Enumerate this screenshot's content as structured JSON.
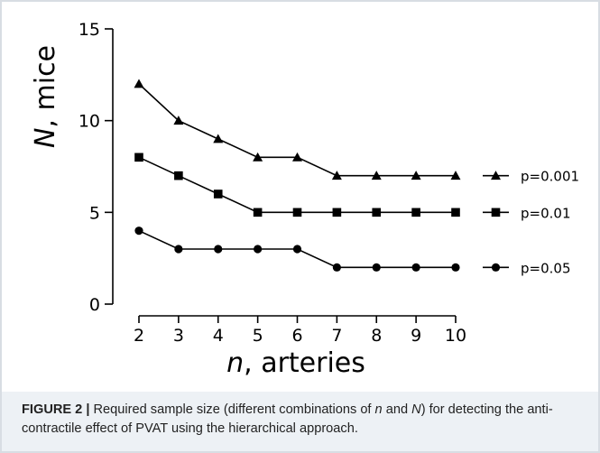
{
  "chart_data": {
    "type": "line",
    "x": [
      2,
      3,
      4,
      5,
      6,
      7,
      8,
      9,
      10
    ],
    "series": [
      {
        "name": "p=0.001",
        "marker": "triangle",
        "values": [
          12,
          10,
          9,
          8,
          8,
          7,
          7,
          7,
          7
        ]
      },
      {
        "name": "p=0.01",
        "marker": "square",
        "values": [
          8,
          7,
          6,
          5,
          5,
          5,
          5,
          5,
          5
        ]
      },
      {
        "name": "p=0.05",
        "marker": "circle",
        "values": [
          4,
          3,
          3,
          3,
          3,
          2,
          2,
          2,
          2
        ]
      }
    ],
    "xlabel_italic": "n",
    "xlabel_rest": ", arteries",
    "ylabel_italic": "N",
    "ylabel_rest": ", mice",
    "xlim": [
      2,
      10
    ],
    "ylim": [
      0,
      15
    ],
    "yticks": [
      0,
      5,
      10,
      15
    ],
    "xticks": [
      2,
      3,
      4,
      5,
      6,
      7,
      8,
      9,
      10
    ],
    "legend_position": "right",
    "grid": false,
    "line_color": "#000000"
  },
  "caption": {
    "label": "FIGURE 2 |",
    "text_1": " Required sample size (different combinations of ",
    "n": "n",
    "text_2": " and ",
    "N": "N",
    "text_3": ") for detecting the anti-contractile effect of PVAT using the hierarchical approach."
  }
}
